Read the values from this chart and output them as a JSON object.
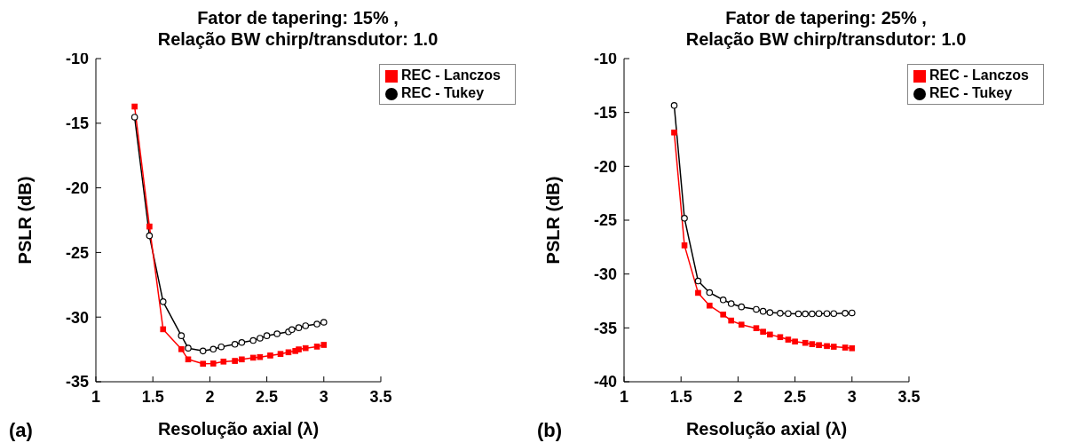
{
  "chart_data": [
    {
      "type": "line",
      "title": "Fator de tapering: 15% ,\nRelação BW chirp/transdutor: 1.0",
      "xlabel": "Resolução axial (λ)",
      "ylabel": "PSLR (dB)",
      "xlim": [
        1,
        3.5
      ],
      "xticks": [
        1,
        1.5,
        2,
        2.5,
        3,
        3.5
      ],
      "ylim": [
        -35,
        -10
      ],
      "yticks": [
        -35,
        -30,
        -25,
        -20,
        -15,
        -10
      ],
      "grid": false,
      "legend": "top right",
      "annotations": [
        "(a)"
      ],
      "series": [
        {
          "name": "REC - Tukey",
          "color": "#000000",
          "marker": "circle",
          "x": [
            1.34,
            1.47,
            1.59,
            1.75,
            1.81,
            1.94,
            2.03,
            2.1,
            2.22,
            2.28,
            2.38,
            2.44,
            2.5,
            2.59,
            2.69,
            2.72,
            2.78,
            2.84,
            2.94,
            3.0
          ],
          "values": [
            -14.53,
            -23.71,
            -28.81,
            -31.44,
            -32.4,
            -32.62,
            -32.48,
            -32.3,
            -32.1,
            -31.96,
            -31.81,
            -31.63,
            -31.44,
            -31.29,
            -31.14,
            -30.97,
            -30.82,
            -30.67,
            -30.54,
            -30.4
          ]
        },
        {
          "name": "REC - Lanczos",
          "color": "#ff0000",
          "marker": "square",
          "x": [
            1.34,
            1.47,
            1.59,
            1.75,
            1.81,
            1.94,
            2.03,
            2.12,
            2.22,
            2.28,
            2.38,
            2.44,
            2.53,
            2.62,
            2.69,
            2.75,
            2.78,
            2.84,
            2.94,
            3.0
          ],
          "values": [
            -13.71,
            -22.99,
            -30.94,
            -32.48,
            -33.27,
            -33.61,
            -33.59,
            -33.44,
            -33.39,
            -33.27,
            -33.14,
            -33.09,
            -32.97,
            -32.85,
            -32.72,
            -32.62,
            -32.5,
            -32.4,
            -32.28,
            -32.15
          ]
        }
      ]
    },
    {
      "type": "line",
      "title": "Fator de tapering: 25% ,\nRelação BW chirp/transdutor: 1.0",
      "xlabel": "Resolução axial (λ)",
      "ylabel": "PSLR (dB)",
      "xlim": [
        1,
        3.5
      ],
      "xticks": [
        1,
        1.5,
        2,
        2.5,
        3,
        3.5
      ],
      "ylim": [
        -40,
        -10
      ],
      "yticks": [
        -40,
        -35,
        -30,
        -25,
        -20,
        -15,
        -10
      ],
      "grid": false,
      "legend": "top right",
      "annotations": [
        "(b)"
      ],
      "series": [
        {
          "name": "REC - Tukey",
          "color": "#000000",
          "marker": "circle",
          "x": [
            1.44,
            1.53,
            1.65,
            1.75,
            1.87,
            1.94,
            2.03,
            2.16,
            2.22,
            2.28,
            2.37,
            2.44,
            2.53,
            2.59,
            2.65,
            2.71,
            2.78,
            2.84,
            2.94,
            3.0
          ],
          "values": [
            -14.35,
            -24.82,
            -30.65,
            -31.72,
            -32.4,
            -32.75,
            -33.05,
            -33.28,
            -33.46,
            -33.58,
            -33.64,
            -33.67,
            -33.7,
            -33.7,
            -33.7,
            -33.67,
            -33.67,
            -33.67,
            -33.64,
            -33.61
          ]
        },
        {
          "name": "REC - Lanczos",
          "color": "#ff0000",
          "marker": "square",
          "x": [
            1.44,
            1.53,
            1.65,
            1.75,
            1.87,
            1.94,
            2.03,
            2.16,
            2.22,
            2.28,
            2.37,
            2.44,
            2.5,
            2.59,
            2.65,
            2.71,
            2.78,
            2.84,
            2.94,
            3.0
          ],
          "values": [
            -16.86,
            -27.34,
            -31.75,
            -32.93,
            -33.76,
            -34.32,
            -34.7,
            -35.03,
            -35.36,
            -35.62,
            -35.86,
            -36.09,
            -36.27,
            -36.39,
            -36.51,
            -36.6,
            -36.69,
            -36.75,
            -36.83,
            -36.89
          ]
        }
      ]
    }
  ]
}
